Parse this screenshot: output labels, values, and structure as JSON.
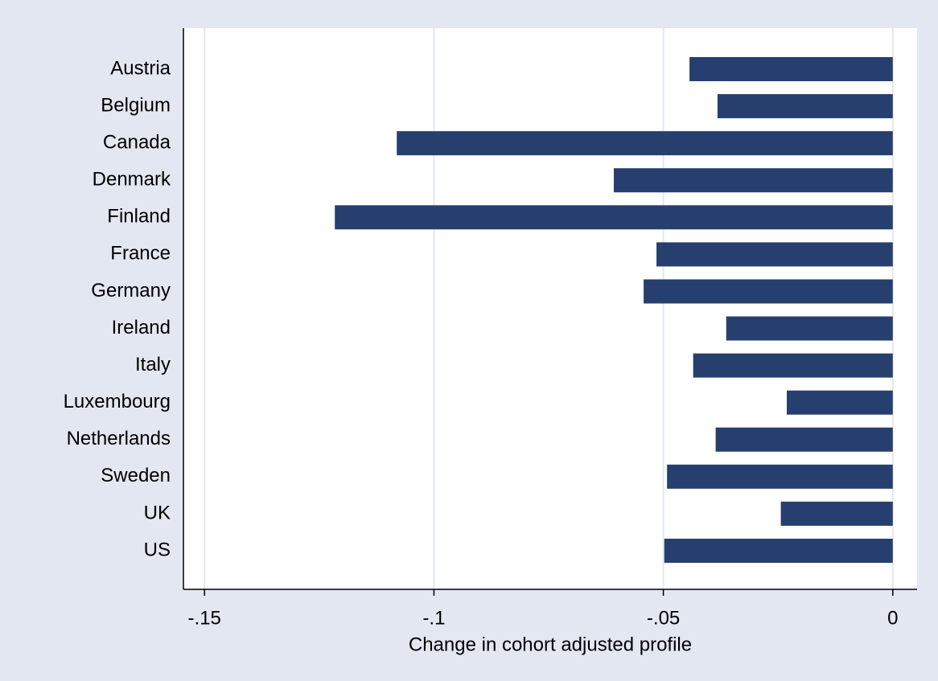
{
  "chart_data": {
    "type": "barh",
    "xlabel": "Change in cohort adjusted profile",
    "categories": [
      "Austria",
      "Belgium",
      "Canada",
      "Denmark",
      "Finland",
      "France",
      "Germany",
      "Ireland",
      "Italy",
      "Luxembourg",
      "Netherlands",
      "Sweden",
      "UK",
      "US"
    ],
    "values": [
      -0.0443,
      -0.0382,
      -0.1081,
      -0.0608,
      -0.1216,
      -0.0515,
      -0.0543,
      -0.0363,
      -0.0435,
      -0.0231,
      -0.0386,
      -0.0492,
      -0.0244,
      -0.0498
    ],
    "color": "#263f6e",
    "xlim": [
      -0.1546,
      0.0053
    ],
    "xticks": [
      {
        "value": -0.15,
        "label": "-.15"
      },
      {
        "value": -0.1,
        "label": "-.1"
      },
      {
        "value": -0.05,
        "label": "-.05"
      },
      0
    ],
    "grid": true
  }
}
